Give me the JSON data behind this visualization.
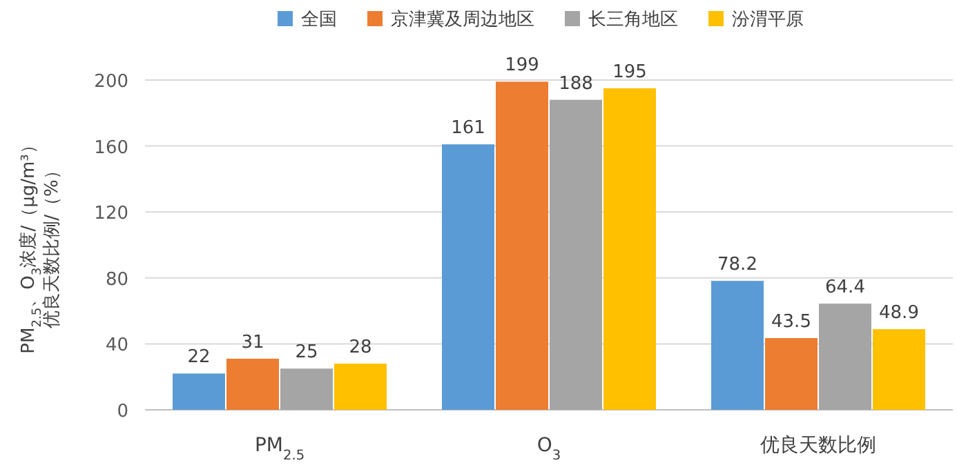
{
  "chart_data": {
    "type": "bar",
    "ylabel": "PM$_{2.5}$、O$_{3}$浓度/（μg/m³）优良天数比例/（%）",
    "categories": [
      "PM$_{2.5}$",
      "O$_{3}$",
      "优良天数比例"
    ],
    "series": [
      {
        "name": "全国",
        "color": "#5b9bd5",
        "values": [
          22,
          161,
          78.2
        ]
      },
      {
        "name": "京津冀及周边地区",
        "color": "#ed7d31",
        "values": [
          31,
          199,
          43.5
        ]
      },
      {
        "name": "长三角地区",
        "color": "#a5a5a5",
        "values": [
          25,
          188,
          64.4
        ]
      },
      {
        "name": "汾渭平原",
        "color": "#ffc000",
        "values": [
          28,
          195,
          48.9
        ]
      }
    ],
    "ylim": [
      0,
      200
    ],
    "yticks": [
      0,
      40,
      80,
      120,
      160,
      200
    ],
    "grid": "y",
    "legend": "top",
    "data_labels": true
  }
}
